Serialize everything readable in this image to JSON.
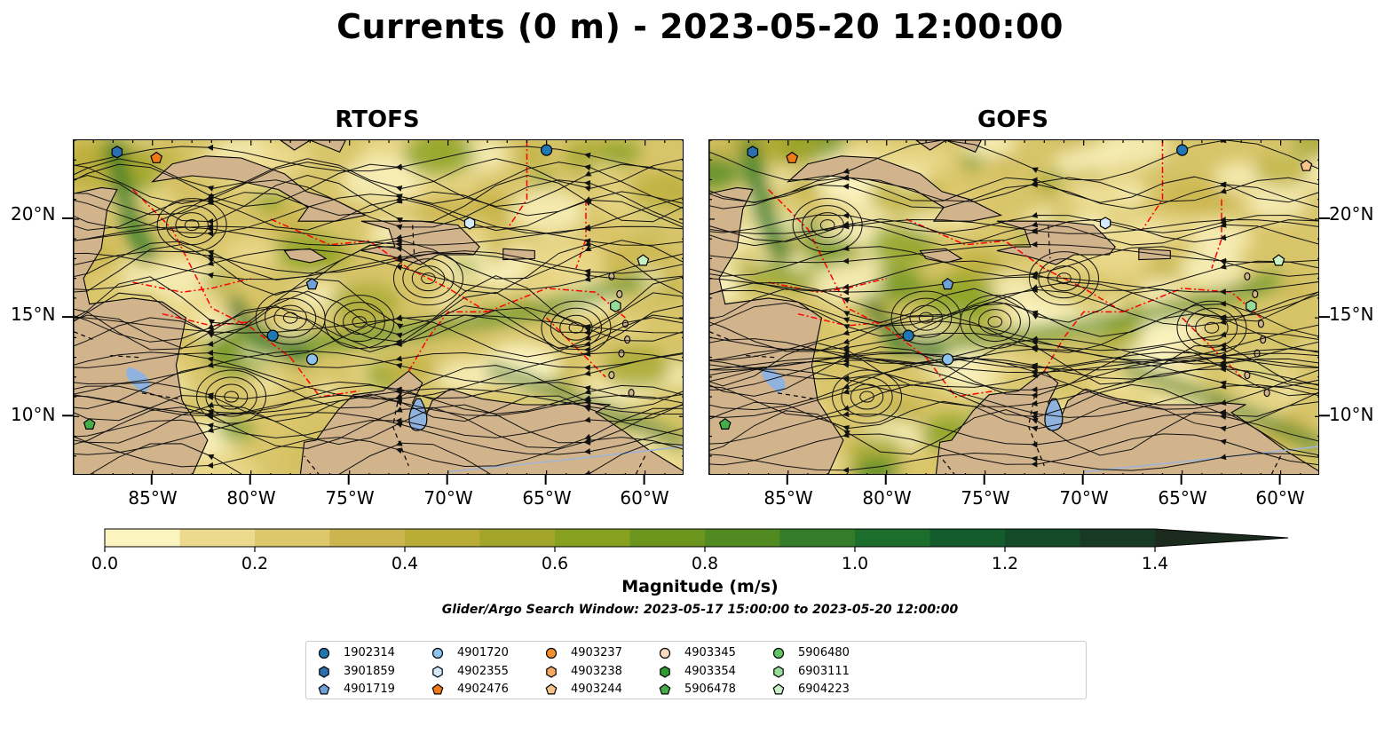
{
  "title": "Currents (0 m) - 2023-05-20 12:00:00",
  "panels": [
    {
      "title": "RTOFS",
      "side": "left"
    },
    {
      "title": "GOFS",
      "side": "right"
    }
  ],
  "map_extent": {
    "lon": [
      -89,
      -58
    ],
    "lat": [
      7,
      24
    ]
  },
  "y_ticks": [
    "20°N",
    "15°N",
    "10°N"
  ],
  "x_ticks": [
    "85°W",
    "80°W",
    "75°W",
    "70°W",
    "65°W",
    "60°W"
  ],
  "colorbar": {
    "label": "Magnitude (m/s)",
    "ticks": [
      "0.0",
      "0.2",
      "0.4",
      "0.6",
      "0.8",
      "1.0",
      "1.2",
      "1.4"
    ],
    "range": [
      0,
      1.5
    ],
    "extend": "max",
    "colors": [
      "#fbf3c0",
      "#ecdb8e",
      "#dcc76b",
      "#cbb54e",
      "#b9ac37",
      "#a3a52a",
      "#88a01f",
      "#6c951e",
      "#508a20",
      "#347c27",
      "#1d6d2d",
      "#145c2c",
      "#134b29",
      "#183a25",
      "#1b2b1d"
    ]
  },
  "subtitle": "Glider/Argo Search Window: 2023-05-17 15:00:00 to 2023-05-20 12:00:00",
  "colors": {
    "land": "#d2b48c",
    "lake": "#8fb3de",
    "eez": "#ff0000",
    "border": "#000000"
  },
  "legend": [
    {
      "id": "1902314",
      "marker": "circle",
      "color": "#1f77b4"
    },
    {
      "id": "3901859",
      "marker": "hexagon",
      "color": "#2b6fb0"
    },
    {
      "id": "4901719",
      "marker": "pentagon",
      "color": "#6fa0d8"
    },
    {
      "id": "4901720",
      "marker": "circle",
      "color": "#8cc2ec"
    },
    {
      "id": "4902355",
      "marker": "hexagon",
      "color": "#d4e9fb"
    },
    {
      "id": "4902476",
      "marker": "pentagon",
      "color": "#f07b16"
    },
    {
      "id": "4903237",
      "marker": "circle",
      "color": "#f48f2b"
    },
    {
      "id": "4903238",
      "marker": "hexagon",
      "color": "#f5a860"
    },
    {
      "id": "4903244",
      "marker": "pentagon",
      "color": "#f8c388"
    },
    {
      "id": "4903345",
      "marker": "circle",
      "color": "#fbdcc0"
    },
    {
      "id": "4903354",
      "marker": "hexagon",
      "color": "#2e9b34"
    },
    {
      "id": "5906478",
      "marker": "pentagon",
      "color": "#47ad4a"
    },
    {
      "id": "5906480",
      "marker": "circle",
      "color": "#5cc766"
    },
    {
      "id": "6903111",
      "marker": "hexagon",
      "color": "#96dc98"
    },
    {
      "id": "6904223",
      "marker": "pentagon",
      "color": "#c9f0c5"
    }
  ],
  "floats_rtofs": [
    {
      "id": "3901859",
      "lon": -86.8,
      "lat": 23.4
    },
    {
      "id": "4902476",
      "lon": -84.8,
      "lat": 23.1
    },
    {
      "id": "1902314",
      "lon": -65.0,
      "lat": 23.5
    },
    {
      "id": "4902355",
      "lon": -68.9,
      "lat": 19.8
    },
    {
      "id": "6904223",
      "lon": -60.1,
      "lat": 17.9
    },
    {
      "id": "4901719",
      "lon": -76.9,
      "lat": 16.7
    },
    {
      "id": "6903111",
      "lon": -61.5,
      "lat": 15.6
    },
    {
      "id": "1902314",
      "lon": -78.9,
      "lat": 14.1
    },
    {
      "id": "4901720",
      "lon": -76.9,
      "lat": 12.9
    },
    {
      "id": "5906478",
      "lon": -88.2,
      "lat": 9.6
    }
  ],
  "floats_gofs": [
    {
      "id": "3901859",
      "lon": -86.8,
      "lat": 23.4
    },
    {
      "id": "4902476",
      "lon": -84.8,
      "lat": 23.1
    },
    {
      "id": "1902314",
      "lon": -65.0,
      "lat": 23.5
    },
    {
      "id": "4903244",
      "lon": -58.7,
      "lat": 22.7
    },
    {
      "id": "4902355",
      "lon": -68.9,
      "lat": 19.8
    },
    {
      "id": "6904223",
      "lon": -60.1,
      "lat": 17.9
    },
    {
      "id": "4901719",
      "lon": -76.9,
      "lat": 16.7
    },
    {
      "id": "6903111",
      "lon": -61.5,
      "lat": 15.6
    },
    {
      "id": "1902314",
      "lon": -78.9,
      "lat": 14.1
    },
    {
      "id": "4901720",
      "lon": -76.9,
      "lat": 12.9
    },
    {
      "id": "5906478",
      "lon": -88.2,
      "lat": 9.6
    }
  ]
}
